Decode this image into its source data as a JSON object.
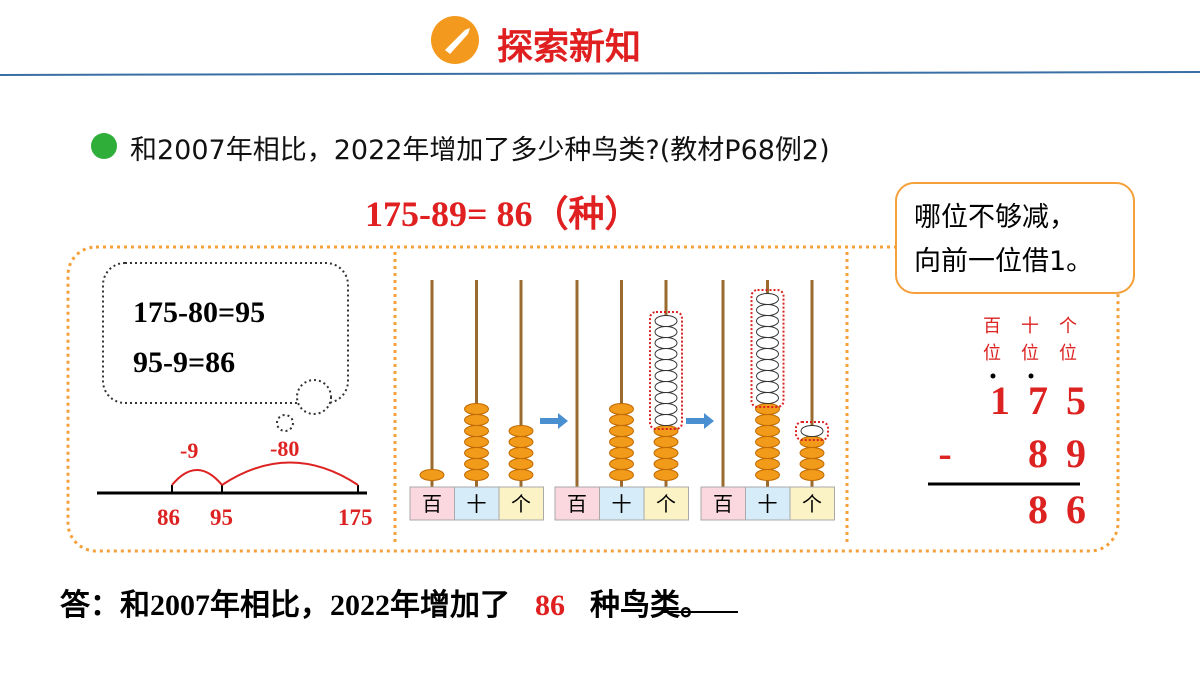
{
  "header": {
    "title": "探索新知"
  },
  "question": "和2007年相比，2022年增加了多少种鸟类?(教材P68例2)",
  "equation": "175-89= 86（种）",
  "hint": [
    "哪位不够减，",
    "向前一位借1。"
  ],
  "thought": [
    "175-80=95",
    "95-9=86"
  ],
  "number_line": {
    "jumps": [
      "-9",
      "-80"
    ],
    "labels": [
      "86",
      "95",
      "175"
    ]
  },
  "abacus": [
    {
      "rods": [
        {
          "label": "百",
          "solid": 1,
          "hollow": 0
        },
        {
          "label": "十",
          "solid": 7,
          "hollow": 0
        },
        {
          "label": "个",
          "solid": 5,
          "hollow": 0
        }
      ]
    },
    {
      "rods": [
        {
          "label": "百",
          "solid": 0,
          "hollow": 0
        },
        {
          "label": "十",
          "solid": 7,
          "hollow": 0
        },
        {
          "label": "个",
          "solid": 5,
          "hollow": 10
        }
      ]
    },
    {
      "rods": [
        {
          "label": "百",
          "solid": 0,
          "hollow": 0
        },
        {
          "label": "十",
          "solid": 7,
          "hollow": 10
        },
        {
          "label": "个",
          "solid": 4,
          "hollow": 1
        }
      ]
    }
  ],
  "vertical": {
    "places": [
      "百位",
      "十位",
      "个位"
    ],
    "rows": [
      [
        "1",
        "7",
        "5"
      ],
      [
        "-",
        "8",
        "9"
      ],
      [
        "8",
        "6"
      ]
    ]
  },
  "answer": {
    "prefix": "答：和2007年相比，2022年增加了",
    "blank": "86",
    "suffix": "种鸟类。"
  }
}
